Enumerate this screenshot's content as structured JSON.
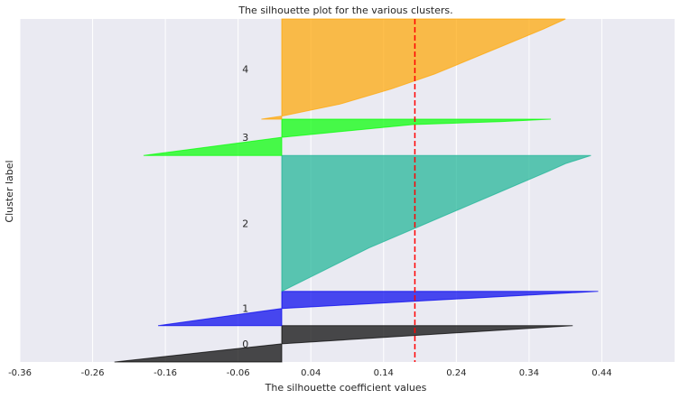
{
  "chart_data": {
    "type": "area",
    "title": "The silhouette plot for the various clusters.",
    "xlabel": "The silhouette coefficient values",
    "ylabel": "Cluster label",
    "xlim": [
      -0.36,
      0.54
    ],
    "ylim": [
      0,
      500
    ],
    "xticks": [
      "-0.36",
      "-0.26",
      "-0.16",
      "-0.06",
      "0.04",
      "0.14",
      "0.24",
      "0.34",
      "0.44"
    ],
    "xtick_values": [
      -0.36,
      -0.26,
      -0.16,
      -0.06,
      0.04,
      0.14,
      0.24,
      0.34,
      0.44
    ],
    "grid": true,
    "average_silhouette": 0.183,
    "average_line_color": "#ff0000",
    "series": [
      {
        "name": "0",
        "color": "#000000",
        "y_lower": 0,
        "y_upper": 53,
        "profile": [
          [
            0,
            -0.23
          ],
          [
            0.5,
            0.0
          ],
          [
            1,
            0.4
          ]
        ]
      },
      {
        "name": "1",
        "color": "#0000ee",
        "y_lower": 53,
        "y_upper": 103,
        "profile": [
          [
            0,
            -0.17
          ],
          [
            0.5,
            0.0
          ],
          [
            1,
            0.435
          ]
        ]
      },
      {
        "name": "2",
        "color": "#1ab394",
        "y_lower": 103,
        "y_upper": 301,
        "profile": [
          [
            0,
            0.0
          ],
          [
            0.08,
            0.03
          ],
          [
            0.16,
            0.06
          ],
          [
            0.24,
            0.09
          ],
          [
            0.32,
            0.12
          ],
          [
            0.4,
            0.155
          ],
          [
            0.48,
            0.19
          ],
          [
            0.56,
            0.225
          ],
          [
            0.64,
            0.26
          ],
          [
            0.72,
            0.295
          ],
          [
            0.8,
            0.33
          ],
          [
            0.88,
            0.365
          ],
          [
            0.94,
            0.39
          ],
          [
            1,
            0.425
          ]
        ]
      },
      {
        "name": "3",
        "color": "#00ff00",
        "y_lower": 301,
        "y_upper": 354,
        "profile": [
          [
            0,
            -0.19
          ],
          [
            0.5,
            0.0
          ],
          [
            0.85,
            0.18
          ],
          [
            0.93,
            0.3
          ],
          [
            1,
            0.37
          ]
        ]
      },
      {
        "name": "4",
        "color": "#ffa500",
        "y_lower": 354,
        "y_upper": 500,
        "profile": [
          [
            0,
            -0.028
          ],
          [
            0.03,
            0.0
          ],
          [
            0.15,
            0.08
          ],
          [
            0.3,
            0.15
          ],
          [
            0.45,
            0.21
          ],
          [
            0.6,
            0.26
          ],
          [
            0.75,
            0.31
          ],
          [
            0.9,
            0.36
          ],
          [
            1,
            0.39
          ]
        ]
      }
    ]
  }
}
